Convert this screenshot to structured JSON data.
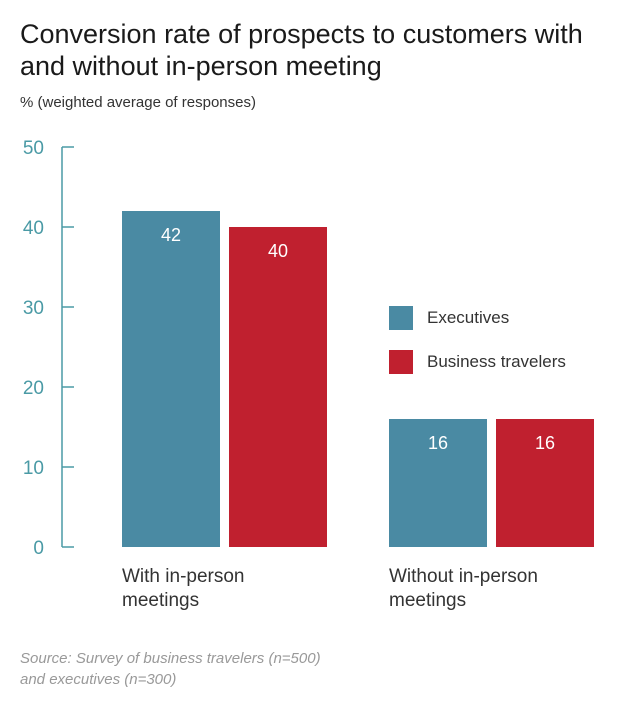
{
  "chart_data": {
    "type": "bar",
    "title": "Conversion rate of prospects to customers with and without in-person meeting",
    "subtitle": "% (weighted average of responses)",
    "categories": [
      [
        "With in-person",
        "meetings"
      ],
      [
        "Without in-person",
        "meetings"
      ]
    ],
    "series": [
      {
        "name": "Executives",
        "color": "#4a8aa3",
        "values": [
          42,
          16
        ]
      },
      {
        "name": "Business travelers",
        "color": "#c0202f",
        "values": [
          40,
          16
        ]
      }
    ],
    "ylim": [
      0,
      50
    ],
    "yticks": [
      0,
      10,
      20,
      30,
      40,
      50
    ],
    "axis_color": "#4a9aa5",
    "data_label_color": "#ffffff",
    "legend_position": "right",
    "grid": false
  },
  "source": {
    "line1": "Source: Survey of business travelers (n=500)",
    "line2": "and executives (n=300)"
  }
}
